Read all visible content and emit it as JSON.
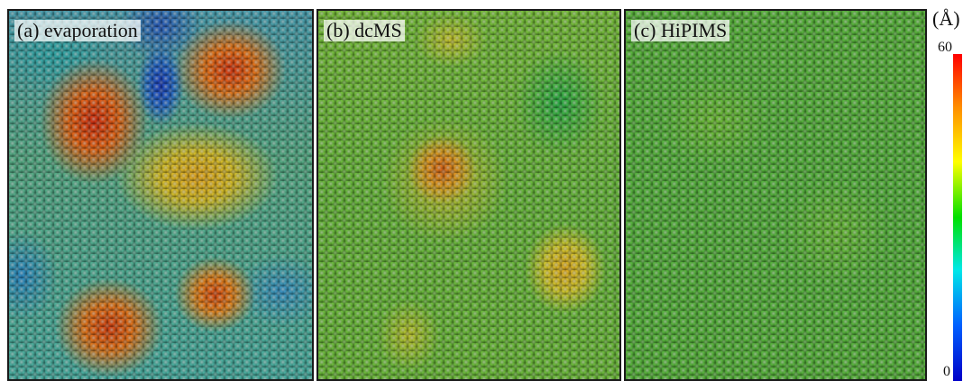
{
  "panels": [
    {
      "id": "a",
      "label": "(a) evaporation"
    },
    {
      "id": "b",
      "label": "(b) dcMS"
    },
    {
      "id": "c",
      "label": "(c) HiPIMS"
    }
  ],
  "colorbar": {
    "unit": "(Å)",
    "max": "60",
    "min": "0",
    "colors": [
      "#ff0000",
      "#ffff00",
      "#00e000",
      "#00e8e8",
      "#0000c8"
    ]
  }
}
